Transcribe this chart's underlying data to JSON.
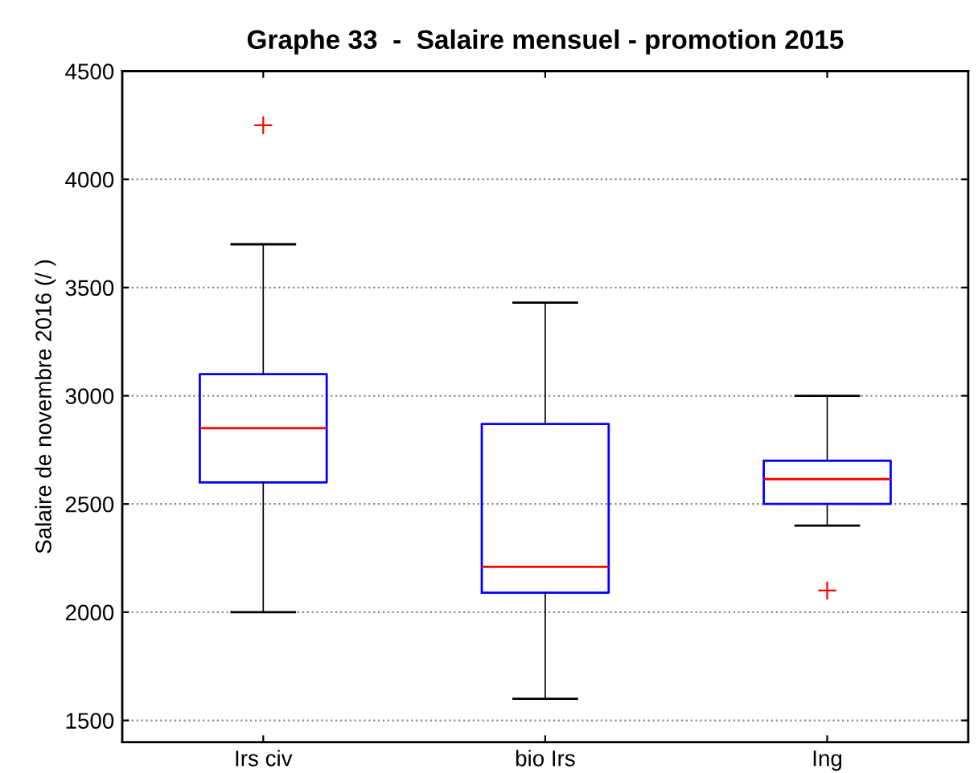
{
  "chart_data": {
    "type": "box",
    "title": "Graphe 33  -  Salaire mensuel - promotion 2015",
    "ylabel": "Salaire de novembre 2016 (/ )",
    "categories": [
      "Irs civ",
      "bio Irs",
      "Ing"
    ],
    "color": "#0000ff",
    "boxes": [
      {
        "low": 2000,
        "q1": 2600,
        "median": 2850,
        "q3": 3100,
        "high": 3700,
        "outliers": [
          4250
        ]
      },
      {
        "low": 1600,
        "q1": 2090,
        "median": 2210,
        "q3": 2870,
        "high": 3430
      },
      {
        "low": 2400,
        "q1": 2500,
        "median": 2615,
        "q3": 2700,
        "high": 3000,
        "outliers": [
          2100
        ]
      }
    ],
    "ylim": [
      1400,
      4500
    ],
    "yticks": [
      1500,
      2000,
      2500,
      3000,
      3500,
      4000,
      4500
    ],
    "grid": "y"
  }
}
